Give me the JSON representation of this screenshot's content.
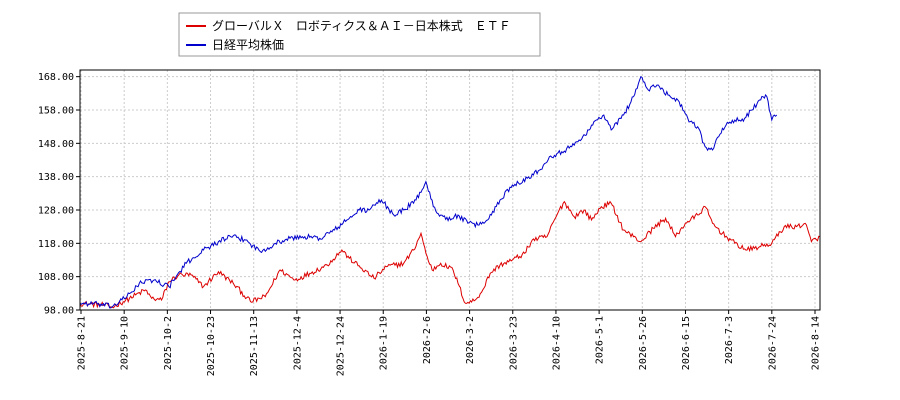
{
  "chart_data": {
    "type": "line",
    "title": "",
    "xlabel": "",
    "ylabel": "",
    "ylim": [
      98.0,
      170.0
    ],
    "y_ticks": [
      "98.00",
      "108.00",
      "118.00",
      "128.00",
      "138.00",
      "148.00",
      "158.00",
      "168.00"
    ],
    "x_ticks": [
      "2025-8-21",
      "2025-9-10",
      "2025-10-2",
      "2025-10-23",
      "2025-11-13",
      "2025-12-4",
      "2025-12-24",
      "2026-1-19",
      "2026-2-6",
      "2026-3-2",
      "2026-3-23",
      "2026-4-10",
      "2026-5-1",
      "2026-5-26",
      "2026-6-15",
      "2026-7-3",
      "2026-7-24",
      "2026-8-14"
    ],
    "grid": true,
    "legend_position": "top-left",
    "series": [
      {
        "name": "グローバルＸ　ロボティクス＆ＡＩ－日本株式　ＥＴＦ",
        "color": "#dd0000",
        "keypoints": [
          [
            0,
            100.0
          ],
          [
            20,
            99.5
          ],
          [
            26,
            98.8
          ],
          [
            40,
            101.5
          ],
          [
            53,
            104.0
          ],
          [
            58,
            101.5
          ],
          [
            66,
            101.0
          ],
          [
            72,
            106.5
          ],
          [
            80,
            108.5
          ],
          [
            90,
            108.5
          ],
          [
            100,
            105.0
          ],
          [
            112,
            109.5
          ],
          [
            124,
            106.0
          ],
          [
            138,
            100.5
          ],
          [
            150,
            102.0
          ],
          [
            162,
            110.0
          ],
          [
            174,
            107.0
          ],
          [
            186,
            109.0
          ],
          [
            200,
            111.5
          ],
          [
            212,
            116.0
          ],
          [
            218,
            113.5
          ],
          [
            228,
            110.5
          ],
          [
            238,
            107.5
          ],
          [
            248,
            111.0
          ],
          [
            262,
            112.0
          ],
          [
            270,
            116.0
          ],
          [
            276,
            121.0
          ],
          [
            280,
            115.0
          ],
          [
            285,
            110.0
          ],
          [
            292,
            112.0
          ],
          [
            302,
            110.0
          ],
          [
            306,
            106.0
          ],
          [
            312,
            100.0
          ],
          [
            320,
            101.0
          ],
          [
            326,
            104.0
          ],
          [
            332,
            109.0
          ],
          [
            340,
            111.5
          ],
          [
            350,
            113.0
          ],
          [
            360,
            115.0
          ],
          [
            366,
            119.0
          ],
          [
            378,
            120.0
          ],
          [
            386,
            126.5
          ],
          [
            392,
            130.5
          ],
          [
            400,
            126.0
          ],
          [
            408,
            128.0
          ],
          [
            414,
            125.0
          ],
          [
            422,
            129.0
          ],
          [
            430,
            130.0
          ],
          [
            440,
            122.0
          ],
          [
            448,
            120.0
          ],
          [
            454,
            118.5
          ],
          [
            464,
            122.5
          ],
          [
            474,
            125.5
          ],
          [
            482,
            120.0
          ],
          [
            490,
            124.0
          ],
          [
            500,
            126.5
          ],
          [
            506,
            129.0
          ],
          [
            512,
            124.0
          ],
          [
            520,
            121.0
          ],
          [
            530,
            118.0
          ],
          [
            540,
            116.0
          ],
          [
            550,
            117.0
          ],
          [
            560,
            118.0
          ],
          [
            570,
            123.0
          ],
          [
            580,
            123.0
          ],
          [
            587,
            124.0
          ],
          [
            592,
            118.5
          ],
          [
            599,
            120.0
          ]
        ]
      },
      {
        "name": "日経平均株価",
        "color": "#0000cc",
        "keypoints": [
          [
            0,
            100.0
          ],
          [
            14,
            99.8
          ],
          [
            26,
            99.0
          ],
          [
            38,
            102.0
          ],
          [
            48,
            106.0
          ],
          [
            60,
            107.0
          ],
          [
            72,
            105.0
          ],
          [
            86,
            112.0
          ],
          [
            100,
            116.0
          ],
          [
            112,
            118.5
          ],
          [
            122,
            120.0
          ],
          [
            134,
            119.0
          ],
          [
            146,
            115.5
          ],
          [
            158,
            118.0
          ],
          [
            170,
            119.5
          ],
          [
            182,
            120.0
          ],
          [
            194,
            119.5
          ],
          [
            206,
            122.0
          ],
          [
            218,
            125.5
          ],
          [
            226,
            128.0
          ],
          [
            234,
            128.0
          ],
          [
            244,
            131.0
          ],
          [
            254,
            126.5
          ],
          [
            262,
            128.0
          ],
          [
            272,
            131.0
          ],
          [
            280,
            136.5
          ],
          [
            286,
            129.0
          ],
          [
            292,
            126.5
          ],
          [
            300,
            125.0
          ],
          [
            306,
            126.5
          ],
          [
            314,
            124.0
          ],
          [
            322,
            123.5
          ],
          [
            330,
            125.0
          ],
          [
            340,
            131.0
          ],
          [
            350,
            135.5
          ],
          [
            362,
            137.5
          ],
          [
            372,
            140.0
          ],
          [
            380,
            144.0
          ],
          [
            390,
            145.5
          ],
          [
            398,
            147.0
          ],
          [
            404,
            149.0
          ],
          [
            412,
            152.0
          ],
          [
            418,
            155.0
          ],
          [
            424,
            156.5
          ],
          [
            430,
            152.0
          ],
          [
            440,
            156.5
          ],
          [
            448,
            162.0
          ],
          [
            454,
            168.0
          ],
          [
            460,
            164.0
          ],
          [
            468,
            165.5
          ],
          [
            476,
            162.5
          ],
          [
            484,
            161.0
          ],
          [
            492,
            155.5
          ],
          [
            500,
            153.0
          ],
          [
            506,
            147.0
          ],
          [
            512,
            146.0
          ],
          [
            520,
            152.5
          ],
          [
            530,
            155.0
          ],
          [
            538,
            155.5
          ],
          [
            544,
            158.0
          ],
          [
            550,
            161.0
          ],
          [
            556,
            162.0
          ],
          [
            560,
            155.0
          ],
          [
            564,
            156.5
          ]
        ]
      }
    ]
  },
  "legend": {
    "items": [
      {
        "label": "グローバルＸ　ロボティクス＆ＡＩ－日本株式　ＥＴＦ",
        "color": "#dd0000"
      },
      {
        "label": "日経平均株価",
        "color": "#0000cc"
      }
    ]
  }
}
